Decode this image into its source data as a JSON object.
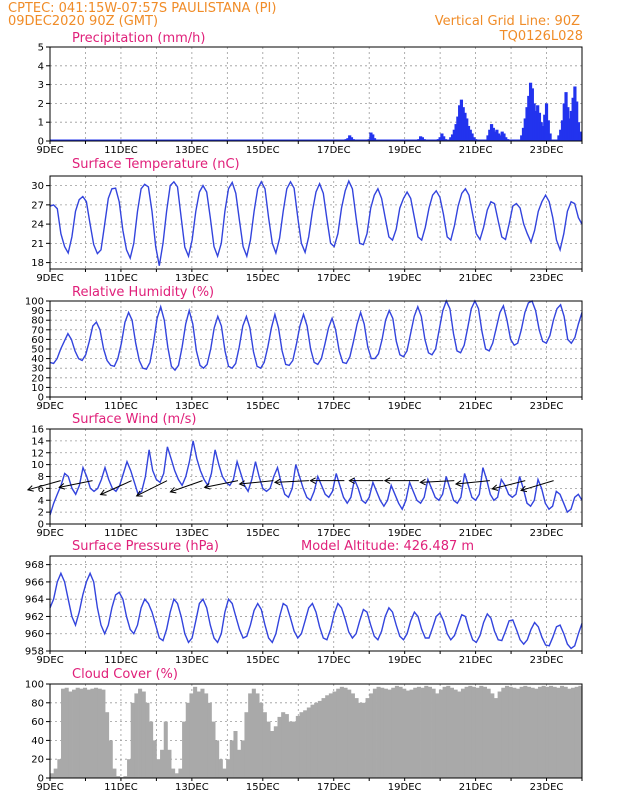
{
  "header": {
    "line1": "CPTEC:   041:15W-07:57S   PAULISTANA (PI)",
    "line2": "09DEC2020 90Z (GMT)",
    "grid_line": "Vertical Grid Line: 90Z",
    "code": "TQ0126L028"
  },
  "x_labels": [
    "9DEC",
    "11DEC",
    "13DEC",
    "15DEC",
    "17DEC",
    "19DEC",
    "21DEC",
    "23DEC"
  ],
  "chart_data": [
    {
      "type": "bar",
      "title": "Precipitation (mm/h)",
      "ylim": [
        0,
        5
      ],
      "yticks": [
        0,
        1,
        2,
        3,
        4,
        5
      ],
      "series_color": "#2233ee",
      "x": [
        8.35,
        8.4,
        8.45,
        8.5,
        8.55,
        8.6,
        8.65,
        8.7,
        9.0,
        9.05,
        9.1,
        9.15,
        9.2,
        10.4,
        10.45,
        10.5,
        10.55,
        10.6,
        10.95,
        11.0,
        11.05,
        11.1,
        11.15,
        11.3,
        11.35,
        11.4,
        11.45,
        11.5,
        11.55,
        11.6,
        11.65,
        11.7,
        11.75,
        11.8,
        11.85,
        11.9,
        11.95,
        12.0,
        12.35,
        12.4,
        12.45,
        12.5,
        12.55,
        12.6,
        12.65,
        12.7,
        12.75,
        12.8,
        12.85,
        12.9,
        13.3,
        13.35,
        13.4,
        13.45,
        13.5,
        13.55,
        13.6,
        13.65,
        13.7,
        13.75,
        13.8,
        13.85,
        13.9,
        13.95,
        14.0,
        14.05,
        14.1,
        14.35,
        14.4,
        14.45,
        14.5,
        14.55,
        14.6,
        14.65,
        14.7,
        14.75,
        14.8,
        14.85,
        14.9,
        14.95
      ],
      "values": [
        0.1,
        0.15,
        0.3,
        0.2,
        0.1,
        0.05,
        0.05,
        0.05,
        0.1,
        0.45,
        0.35,
        0.15,
        0.05,
        0.1,
        0.25,
        0.2,
        0.1,
        0.05,
        0.1,
        0.2,
        0.4,
        0.25,
        0.1,
        0.2,
        0.35,
        0.6,
        0.9,
        1.3,
        1.9,
        2.2,
        1.8,
        1.5,
        1.2,
        0.8,
        0.6,
        0.4,
        0.2,
        0.1,
        0.3,
        0.6,
        0.9,
        0.7,
        0.5,
        0.6,
        0.4,
        0.3,
        0.5,
        0.4,
        0.2,
        0.1,
        0.3,
        0.7,
        1.2,
        1.8,
        2.4,
        3.1,
        2.8,
        2.0,
        1.6,
        1.9,
        1.5,
        1.0,
        0.8,
        1.4,
        2.0,
        1.1,
        0.4,
        0.3,
        0.6,
        1.1,
        2.0,
        2.6,
        1.8,
        1.2,
        1.6,
        2.3,
        2.9,
        2.1,
        1.0,
        0.5
      ]
    },
    {
      "type": "line",
      "title": "Surface Temperature (nC)",
      "ylim": [
        17,
        31.5
      ],
      "yticks": [
        18,
        21,
        24,
        27,
        30
      ],
      "series_color": "#3344dd",
      "values": [
        26.8,
        27,
        26.4,
        22.5,
        20.5,
        19.5,
        22,
        26,
        27.8,
        28.3,
        27.5,
        24,
        20.8,
        19.4,
        20,
        24,
        28,
        29.5,
        29.6,
        27.5,
        23,
        20,
        18.7,
        21,
        26,
        29.5,
        30.2,
        29.8,
        26,
        20.5,
        17.5,
        21,
        26,
        30,
        30.6,
        29.8,
        25,
        20.4,
        19,
        21.5,
        26,
        29,
        30,
        29,
        25,
        20.5,
        19,
        21,
        26,
        29.5,
        30.5,
        28.8,
        24.5,
        20.5,
        19,
        21.5,
        26,
        29.5,
        30.6,
        29.5,
        25,
        21,
        19.5,
        21.8,
        26,
        29.5,
        30.6,
        29.6,
        25,
        21,
        19.6,
        22,
        26,
        29,
        30.3,
        28.8,
        24.8,
        21,
        20.5,
        22.5,
        26.5,
        29.2,
        30.7,
        29.5,
        25,
        21,
        20.8,
        22.5,
        26.5,
        28.5,
        29.5,
        28,
        25,
        22,
        21.5,
        23.2,
        26.5,
        28,
        29,
        28,
        25,
        22,
        21.5,
        23.5,
        26.5,
        28.5,
        29.2,
        28.2,
        25.5,
        22,
        21.5,
        23.8,
        26.8,
        28.8,
        29.5,
        28.5,
        25.5,
        22.5,
        21.6,
        23.5,
        26.2,
        27.5,
        27.2,
        24.5,
        22,
        21.6,
        24,
        26.8,
        27.2,
        26.5,
        24,
        22.5,
        21.2,
        23,
        26,
        27.5,
        28.5,
        27.5,
        25,
        21.5,
        20,
        22.5,
        26,
        27.5,
        27.2,
        25,
        24
      ]
    },
    {
      "type": "line",
      "title": "Relative Humidity (%)",
      "ylim": [
        0,
        100
      ],
      "yticks": [
        0,
        10,
        20,
        30,
        40,
        50,
        60,
        70,
        80,
        90,
        100
      ],
      "series_color": "#3344dd",
      "values": [
        36,
        35,
        40,
        50,
        58,
        66,
        60,
        48,
        40,
        38,
        44,
        58,
        74,
        78,
        70,
        50,
        38,
        33,
        32,
        40,
        56,
        78,
        88,
        80,
        56,
        38,
        30,
        29,
        36,
        56,
        82,
        94,
        80,
        52,
        32,
        28,
        33,
        52,
        76,
        90,
        76,
        48,
        33,
        30,
        34,
        50,
        72,
        84,
        74,
        48,
        32,
        30,
        35,
        52,
        74,
        84,
        72,
        47,
        32,
        30,
        36,
        52,
        72,
        86,
        72,
        48,
        34,
        33,
        38,
        55,
        74,
        86,
        74,
        50,
        36,
        34,
        40,
        55,
        72,
        82,
        70,
        48,
        36,
        35,
        42,
        58,
        76,
        88,
        76,
        52,
        40,
        40,
        45,
        60,
        80,
        90,
        82,
        58,
        44,
        42,
        48,
        66,
        84,
        94,
        84,
        60,
        46,
        44,
        50,
        70,
        90,
        100,
        92,
        66,
        48,
        46,
        54,
        72,
        92,
        100,
        92,
        68,
        50,
        48,
        56,
        72,
        88,
        95,
        80,
        60,
        54,
        56,
        70,
        88,
        98,
        100,
        90,
        70,
        58,
        56,
        64,
        80,
        92,
        96,
        84,
        60,
        56,
        62,
        76,
        88
      ]
    },
    {
      "type": "line",
      "title": "Surface Wind (m/s)",
      "ylim": [
        0,
        16
      ],
      "yticks": [
        0,
        2,
        4,
        6,
        8,
        10,
        12,
        14,
        16
      ],
      "series_color": "#3344dd",
      "arrow_color": "#000000",
      "values": [
        1.5,
        3.5,
        5,
        6.5,
        8.5,
        8,
        6,
        5,
        6.5,
        9.5,
        8,
        6,
        5.5,
        6,
        7.5,
        9.5,
        7.5,
        6,
        5.5,
        6.5,
        8.5,
        10.5,
        9,
        7,
        5,
        5.5,
        8,
        12.5,
        9,
        7.5,
        7,
        8.5,
        13,
        11,
        9,
        7.5,
        6.5,
        8,
        10.5,
        14,
        11,
        9,
        7.5,
        6.5,
        8.5,
        12.5,
        10,
        8,
        7,
        6.5,
        7.5,
        10.5,
        8.5,
        6.5,
        5.5,
        7.5,
        10.5,
        8,
        6,
        5.5,
        6,
        8,
        9.5,
        7,
        5,
        4.5,
        6,
        10,
        8,
        6,
        4.5,
        4,
        5.5,
        8,
        6.5,
        5,
        4.5,
        5.5,
        8.5,
        6.5,
        4.5,
        3.5,
        4.5,
        7.5,
        6,
        4,
        3.5,
        4.5,
        7,
        5.5,
        4,
        3,
        4,
        6.5,
        5,
        3.5,
        2.5,
        4,
        7,
        5.5,
        4,
        3.5,
        4.5,
        7.5,
        6,
        4.5,
        4,
        5,
        8,
        6,
        4,
        3.5,
        4.5,
        8.5,
        6.5,
        4.5,
        4,
        5,
        9.5,
        7.5,
        5,
        4,
        4.5,
        7.5,
        6.5,
        5,
        4.5,
        5,
        8,
        6,
        3.5,
        3,
        4,
        7.5,
        6,
        3.5,
        2.5,
        3,
        5.5,
        5,
        3.5,
        2,
        2.5,
        4.5,
        5,
        4
      ],
      "arrows": [
        {
          "dx": -1,
          "dy": 0.28,
          "day": 0.3
        },
        {
          "dx": -1,
          "dy": 0.2,
          "day": 1.2
        },
        {
          "dx": -1,
          "dy": 0.45,
          "day": 2.3
        },
        {
          "dx": -1,
          "dy": 0.5,
          "day": 3.3
        },
        {
          "dx": -1,
          "dy": 0.35,
          "day": 4.3
        },
        {
          "dx": -1,
          "dy": 0.2,
          "day": 5.3
        },
        {
          "dx": -1,
          "dy": 0.1,
          "day": 6.3
        },
        {
          "dx": -1,
          "dy": 0.05,
          "day": 7.3
        },
        {
          "dx": -1,
          "dy": 0.0,
          "day": 8.3
        },
        {
          "dx": -1,
          "dy": 0.0,
          "day": 9.4
        },
        {
          "dx": -1,
          "dy": 0.0,
          "day": 10.4
        },
        {
          "dx": -1,
          "dy": 0.05,
          "day": 11.4
        },
        {
          "dx": -1,
          "dy": 0.1,
          "day": 12.4
        },
        {
          "dx": -1,
          "dy": 0.25,
          "day": 13.4
        },
        {
          "dx": -1,
          "dy": 0.3,
          "day": 14.2
        }
      ]
    },
    {
      "type": "line",
      "title": "Surface Pressure (hPa)",
      "annotation": "Model Altitude: 426.487 m",
      "ylim": [
        958,
        969
      ],
      "yticks": [
        958,
        960,
        962,
        964,
        966,
        968
      ],
      "series_color": "#3344dd",
      "values": [
        963,
        964,
        966,
        967,
        966,
        964,
        962,
        961,
        962.5,
        964.5,
        966,
        967,
        966,
        963,
        961,
        960,
        961,
        963,
        964.5,
        964.8,
        964,
        962,
        960.5,
        960,
        961,
        963,
        964,
        963.5,
        962.5,
        961,
        959.5,
        959.2,
        960.5,
        962.5,
        964,
        963.5,
        962,
        960,
        959,
        959.5,
        961.5,
        963.5,
        964,
        963,
        961,
        959.5,
        959,
        960,
        962.5,
        964,
        963.5,
        962,
        960.5,
        959.5,
        959.7,
        961,
        962.7,
        963.5,
        962.8,
        961,
        959.5,
        959,
        960,
        962,
        963.5,
        963.2,
        961.8,
        960.3,
        959.5,
        960,
        961.5,
        963,
        963.5,
        962.5,
        960.8,
        959.5,
        959.3,
        960.5,
        962.3,
        963.5,
        963,
        961.7,
        960.2,
        959.5,
        960,
        961.5,
        962.8,
        962.5,
        961,
        959.7,
        959.3,
        960.3,
        962,
        963,
        962.5,
        961,
        959.7,
        959.3,
        960,
        961.5,
        962.5,
        962,
        960.5,
        959.5,
        959.5,
        960.7,
        962,
        962.4,
        961.5,
        960,
        959.3,
        959.8,
        961,
        962.2,
        962,
        960.5,
        959.3,
        959,
        959.8,
        961.3,
        962.3,
        961.8,
        960.3,
        959.3,
        959.2,
        960.3,
        961.5,
        961.6,
        960.5,
        959.3,
        958.8,
        959.3,
        960.5,
        961.3,
        960.8,
        959.6,
        958.7,
        958.6,
        959.6,
        960.8,
        961,
        960,
        958.8,
        958.3,
        958.6,
        960,
        961.2
      ]
    },
    {
      "type": "area",
      "title": "Cloud Cover (%)",
      "ylim": [
        0,
        100
      ],
      "yticks": [
        0,
        20,
        40,
        60,
        80,
        100
      ],
      "series_color": "#a9a9a9",
      "values": [
        5,
        10,
        20,
        95,
        96,
        92,
        94,
        96,
        95,
        96,
        94,
        95,
        96,
        95,
        94,
        70,
        40,
        10,
        2,
        1,
        2,
        20,
        80,
        90,
        95,
        92,
        80,
        60,
        40,
        20,
        30,
        60,
        30,
        10,
        5,
        10,
        60,
        80,
        90,
        97,
        92,
        95,
        90,
        80,
        60,
        40,
        20,
        10,
        20,
        40,
        50,
        30,
        40,
        70,
        90,
        95,
        90,
        80,
        70,
        60,
        50,
        55,
        65,
        70,
        68,
        60,
        60,
        66,
        70,
        72,
        75,
        78,
        80,
        82,
        85,
        88,
        90,
        92,
        95,
        97,
        96,
        94,
        90,
        85,
        80,
        80,
        85,
        90,
        95,
        97,
        96,
        95,
        94,
        96,
        98,
        97,
        95,
        93,
        94,
        96,
        97,
        96,
        98,
        97,
        95,
        90,
        94,
        97,
        98,
        96,
        94,
        92,
        95,
        97,
        98,
        97,
        96,
        98,
        97,
        95,
        90,
        85,
        92,
        96,
        98,
        97,
        96,
        95,
        97,
        98,
        97,
        96,
        95,
        97,
        98,
        97,
        98,
        97,
        96,
        98,
        97,
        95,
        96,
        97,
        98
      ]
    }
  ]
}
